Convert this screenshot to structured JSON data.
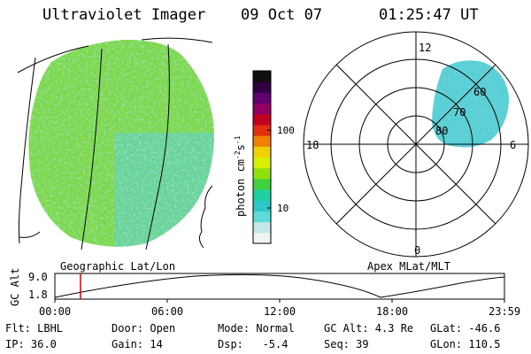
{
  "header": {
    "instrument": "Ultraviolet Imager",
    "date": "09 Oct 07",
    "time": "01:25:47 UT"
  },
  "colorbar": {
    "unit_label": "photon cm",
    "unit_exp1": "-2",
    "unit_s": "s",
    "unit_exp2": "-1",
    "ticks": [
      "100",
      "10"
    ],
    "colors": [
      "#f0f4f4",
      "#c4e8e8",
      "#60dcd8",
      "#2cc8c8",
      "#20d0a0",
      "#40d040",
      "#90e010",
      "#d8f000",
      "#f0d000",
      "#f08000",
      "#e03010",
      "#c00020",
      "#900060",
      "#600070",
      "#300040",
      "#101010"
    ]
  },
  "geo_panel": {
    "caption": "Geographic Lat/Lon"
  },
  "polar_panel": {
    "caption": "Apex MLat/MLT",
    "mlt_labels": {
      "top": "12",
      "left": "18",
      "right": "6",
      "bottom": "0"
    },
    "lat_labels": [
      "60",
      "70",
      "80"
    ]
  },
  "altitude_plot": {
    "axis_label": "GC Alt",
    "y_ticks": [
      "9.0",
      "1.8"
    ],
    "x_ticks": [
      "00:00",
      "06:00",
      "12:00",
      "18:00",
      "23:59"
    ],
    "current_time_marker": "01:25"
  },
  "info": {
    "filter": "Flt: LBHL",
    "ip": "IP: 36.0",
    "door": "Door: Open",
    "gain": "Gain: 14",
    "mode": "Mode: Normal",
    "dsp": "Dsp:   -5.4",
    "gc_alt": "GC Alt: 4.3 Re",
    "seq": "Seq: 39",
    "glat": "GLat: -46.6",
    "glon": "GLon: 110.5"
  },
  "colors": {
    "aurora_green": "#7ed84a",
    "aurora_cyan": "#5ad0d6",
    "marker_red": "#dd0000"
  }
}
